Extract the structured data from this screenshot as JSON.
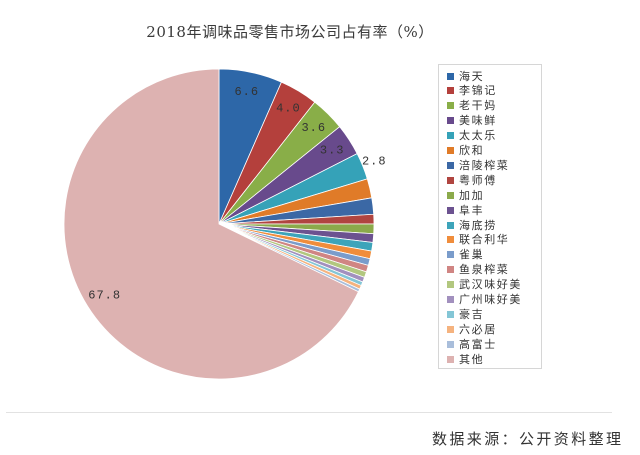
{
  "chart_data": {
    "type": "pie",
    "title": "2018年调味品零售市场公司占有率（%）",
    "legend_position": "right",
    "slices": [
      {
        "name": "海天",
        "value": 6.6,
        "data_label": "6.6",
        "color": "#2D67A8"
      },
      {
        "name": "李锦记",
        "value": 4.0,
        "data_label": "4.0",
        "color": "#B4403C"
      },
      {
        "name": "老干妈",
        "value": 3.6,
        "data_label": "3.6",
        "color": "#89AE48"
      },
      {
        "name": "美味鲜",
        "value": 3.3,
        "data_label": "3.3",
        "color": "#684A8C"
      },
      {
        "name": "太太乐",
        "value": 2.8,
        "data_label": "2.8",
        "color": "#35A2B8"
      },
      {
        "name": "欣和",
        "value": 2.0,
        "color": "#E07B28"
      },
      {
        "name": "涪陵榨菜",
        "value": 1.7,
        "color": "#3B68A5"
      },
      {
        "name": "粤师傅",
        "value": 1.0,
        "color": "#B04540"
      },
      {
        "name": "加加",
        "value": 1.0,
        "color": "#8BAA4B"
      },
      {
        "name": "阜丰",
        "value": 0.9,
        "color": "#6C5290"
      },
      {
        "name": "海底捞",
        "value": 0.9,
        "color": "#3DA4BA"
      },
      {
        "name": "联合利华",
        "value": 0.8,
        "color": "#F08D3C"
      },
      {
        "name": "雀巢",
        "value": 0.7,
        "color": "#7A9CCB"
      },
      {
        "name": "鱼泉榨菜",
        "value": 0.7,
        "color": "#D08583"
      },
      {
        "name": "武汉味好美",
        "value": 0.6,
        "color": "#B2C77F"
      },
      {
        "name": "广州味好美",
        "value": 0.5,
        "color": "#A290BE"
      },
      {
        "name": "豪吉",
        "value": 0.4,
        "color": "#84C6D6"
      },
      {
        "name": "六必居",
        "value": 0.4,
        "color": "#F5B37F"
      },
      {
        "name": "高富士",
        "value": 0.3,
        "color": "#A9BEDB"
      },
      {
        "name": "其他",
        "value": 67.8,
        "data_label": "67.8",
        "color": "#DDB2B1"
      }
    ]
  },
  "footer": {
    "source": "数据来源：公开资料整理"
  }
}
